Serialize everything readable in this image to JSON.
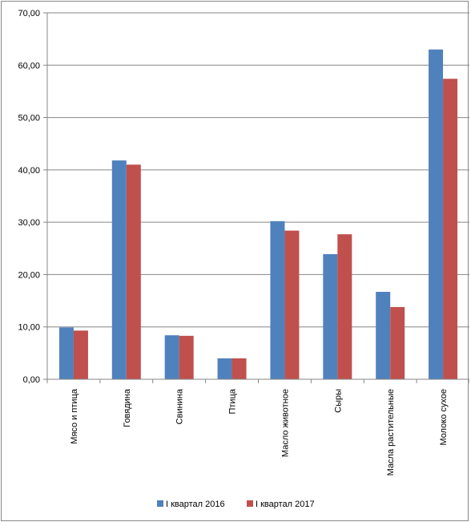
{
  "chart_data": {
    "type": "bar",
    "title": "",
    "xlabel": "",
    "ylabel": "",
    "categories": [
      "Мясо и птица",
      "Говядина",
      "Свинина",
      "Птица",
      "Масло животное",
      "Сыры",
      "Масла растительные",
      "Молоко сухое"
    ],
    "series": [
      {
        "name": "I квартал 2016",
        "color": "#4f81bd",
        "values": [
          9.9,
          41.8,
          8.4,
          4.0,
          30.2,
          23.9,
          16.7,
          63.0
        ]
      },
      {
        "name": "I квартал 2017",
        "color": "#c0504d",
        "values": [
          9.3,
          41.0,
          8.3,
          4.0,
          28.4,
          27.7,
          13.8,
          57.4
        ]
      }
    ],
    "ylim": [
      0,
      70
    ],
    "yticks": [
      "0,00",
      "10,00",
      "20,00",
      "30,00",
      "40,00",
      "50,00",
      "60,00",
      "70,00"
    ],
    "grid": true,
    "legend_position": "bottom"
  }
}
